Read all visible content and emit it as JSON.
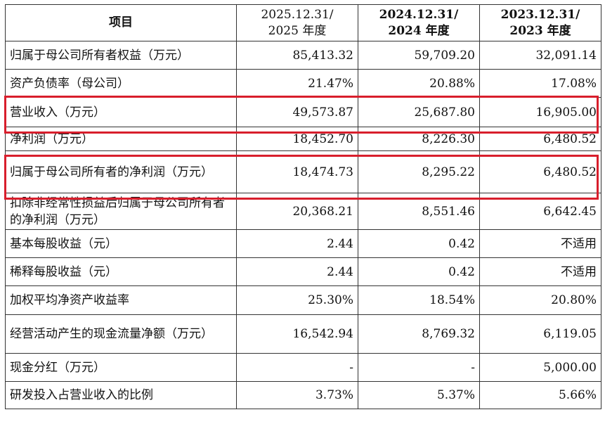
{
  "table": {
    "headers": [
      {
        "line1": "项目",
        "line2": ""
      },
      {
        "line1": "2025.12.31/",
        "line2": "2025 年度"
      },
      {
        "line1": "2024.12.31/",
        "line2": "2024 年度"
      },
      {
        "line1": "2023.12.31/",
        "line2": "2023 年度"
      }
    ],
    "rows": [
      {
        "label": "归属于母公司所有者权益（万元）",
        "values": [
          "85,413.32",
          "59,709.20",
          "32,091.14"
        ]
      },
      {
        "label": "资产负债率（母公司）",
        "values": [
          "21.47%",
          "20.88%",
          "17.08%"
        ]
      },
      {
        "label": "营业收入（万元）",
        "values": [
          "49,573.87",
          "25,687.80",
          "16,905.00"
        ]
      },
      {
        "label": "净利润（万元）",
        "values": [
          "18,452.70",
          "8,226.30",
          "6,480.52"
        ]
      },
      {
        "label": "归属于母公司所有者的净利润（万元）",
        "values": [
          "18,474.73",
          "8,295.22",
          "6,480.52"
        ]
      },
      {
        "label": "扣除非经常性损益后归属于母公司所有者的净利润（万元）",
        "values": [
          "20,368.21",
          "8,551.46",
          "6,642.45"
        ]
      },
      {
        "label": "基本每股收益（元）",
        "values": [
          "2.44",
          "0.42",
          "不适用"
        ]
      },
      {
        "label": "稀释每股收益（元）",
        "values": [
          "2.44",
          "0.42",
          "不适用"
        ]
      },
      {
        "label": "加权平均净资产收益率",
        "values": [
          "25.30%",
          "18.54%",
          "20.80%"
        ]
      },
      {
        "label": "经营活动产生的现金流量净额（万元）",
        "values": [
          "16,542.94",
          "8,769.32",
          "6,119.05"
        ]
      },
      {
        "label": "现金分红（万元）",
        "values": [
          "-",
          "-",
          "5,000.00"
        ]
      },
      {
        "label": "研发投入占营业收入的比例",
        "values": [
          "3.73%",
          "5.37%",
          "5.66%"
        ]
      }
    ]
  },
  "colors": {
    "highlight": "#d81e2c",
    "border": "#333333"
  }
}
